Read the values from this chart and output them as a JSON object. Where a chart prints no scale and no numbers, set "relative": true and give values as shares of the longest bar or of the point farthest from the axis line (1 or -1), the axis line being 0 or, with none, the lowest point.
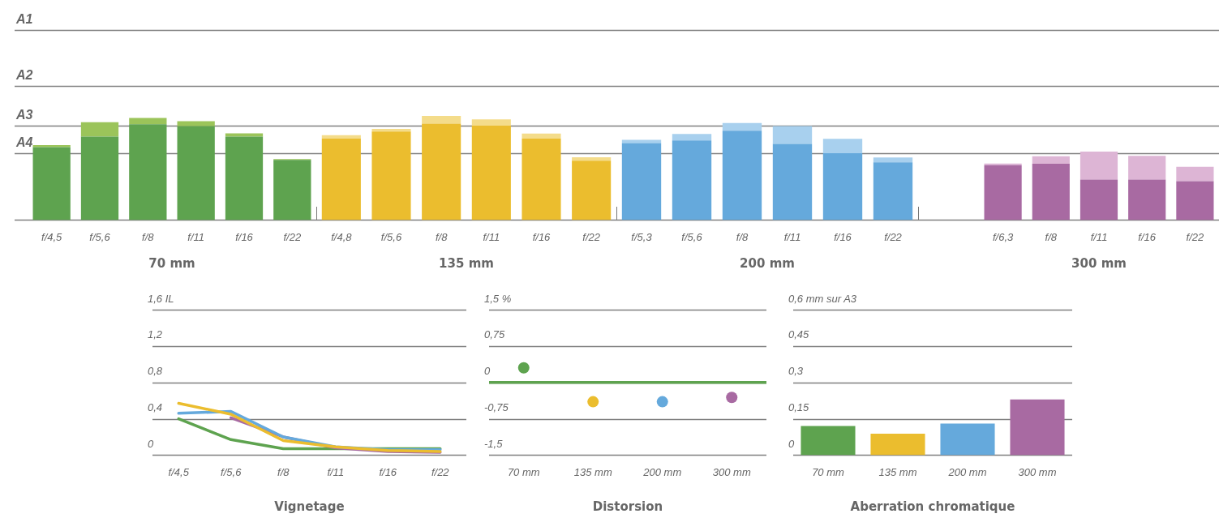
{
  "chart_data": [
    {
      "type": "bar",
      "stacked": true,
      "relative": true,
      "xlabel": "70 mm",
      "categories": [
        "f/4,5",
        "f/5,6",
        "f/8",
        "f/11",
        "f/16",
        "f/22"
      ],
      "series": [
        {
          "color": "#5ea34f",
          "values": [
            0.713,
            0.817,
            0.938,
            0.918,
            0.817,
            0.589
          ]
        },
        {
          "color": "#9bc45a",
          "values": [
            0.02,
            0.141,
            0.062,
            0.049,
            0.031,
            0.007
          ]
        }
      ],
      "ref_lines": [
        {
          "axis": "y",
          "value": 0.656,
          "label": "A4"
        },
        {
          "axis": "y",
          "value": 0.927,
          "label": "A3"
        },
        {
          "axis": "y",
          "value": 1.311,
          "label": "A2"
        },
        {
          "axis": "y",
          "value": 1.857,
          "label": "A1"
        }
      ]
    },
    {
      "type": "bar",
      "stacked": true,
      "relative": true,
      "xlabel": "135 mm",
      "categories": [
        "f/4,8",
        "f/5,6",
        "f/8",
        "f/11",
        "f/16",
        "f/22"
      ],
      "series": [
        {
          "color": "#ebbd2e",
          "values": [
            0.783,
            0.85,
            0.926,
            0.907,
            0.783,
            0.571
          ]
        },
        {
          "color": "#f4dc8a",
          "values": [
            0.033,
            0.026,
            0.074,
            0.061,
            0.048,
            0.033
          ]
        }
      ],
      "ref_lines": [
        {
          "axis": "y",
          "value": 0.644
        },
        {
          "axis": "y",
          "value": 0.911
        },
        {
          "axis": "y",
          "value": 1.289
        },
        {
          "axis": "y",
          "value": 1.824
        }
      ]
    },
    {
      "type": "bar",
      "stacked": true,
      "relative": true,
      "xlabel": "200 mm",
      "categories": [
        "f/5,3",
        "f/5,6",
        "f/8",
        "f/11",
        "f/16",
        "f/22"
      ],
      "series": [
        {
          "color": "#65a9dc",
          "values": [
            0.793,
            0.821,
            0.921,
            0.784,
            0.688,
            0.595
          ]
        },
        {
          "color": "#a8d0ee",
          "values": [
            0.033,
            0.067,
            0.079,
            0.184,
            0.149,
            0.049
          ]
        }
      ],
      "ref_lines": [
        {
          "axis": "y",
          "value": 0.691
        },
        {
          "axis": "y",
          "value": 0.977
        },
        {
          "axis": "y",
          "value": 1.381
        },
        {
          "axis": "y",
          "value": 1.956
        }
      ]
    },
    {
      "type": "bar",
      "stacked": true,
      "relative": true,
      "xlabel": "300 mm",
      "categories": [
        "f/6,3",
        "f/8",
        "f/11",
        "f/16",
        "f/22"
      ],
      "series": [
        {
          "color": "#a86aa2",
          "values": [
            0.802,
            0.822,
            0.591,
            0.591,
            0.568
          ]
        },
        {
          "color": "#ddb5d5",
          "values": [
            0.023,
            0.112,
            0.409,
            0.347,
            0.211
          ]
        }
      ],
      "ref_lines": [
        {
          "axis": "y",
          "value": 0.98
        },
        {
          "axis": "y",
          "value": 1.386
        },
        {
          "axis": "y",
          "value": 1.96
        },
        {
          "axis": "y",
          "value": 2.776
        }
      ]
    },
    {
      "type": "line",
      "title": "Vignetage",
      "categories": [
        "f/4,5",
        "f/5,6",
        "f/8",
        "f/11",
        "f/16",
        "f/22"
      ],
      "ylim": [
        0,
        1.6
      ],
      "yticks": [
        {
          "value": 0,
          "label": "0"
        },
        {
          "value": 0.4,
          "label": "0,4"
        },
        {
          "value": 0.8,
          "label": "0,8"
        },
        {
          "value": 1.2,
          "label": "1,2"
        },
        {
          "value": 1.6,
          "label": "1,6 IL"
        }
      ],
      "grid": "y",
      "series": [
        {
          "color": "#ebbd2e",
          "values": [
            0.57,
            0.45,
            0.16,
            0.09,
            0.05,
            0.04
          ]
        },
        {
          "color": "#65a9dc",
          "values": [
            0.46,
            0.48,
            0.2,
            0.09,
            0.06,
            0.06
          ]
        },
        {
          "color": "#a86aa2",
          "values": [
            null,
            0.41,
            0.2,
            0.08,
            0.04,
            0.03
          ]
        },
        {
          "color": "#5ea34f",
          "values": [
            0.4,
            0.17,
            0.07,
            0.07,
            0.07,
            0.07
          ]
        }
      ]
    },
    {
      "type": "scatter",
      "title": "Distorsion",
      "categories": [
        "70 mm",
        "135 mm",
        "200 mm",
        "300 mm"
      ],
      "values": [
        0.3,
        -0.4,
        -0.4,
        -0.31
      ],
      "colors": [
        "#5ea34f",
        "#ebbd2e",
        "#65a9dc",
        "#a86aa2"
      ],
      "marker": "circle",
      "ylim": [
        -1.5,
        1.5
      ],
      "yticks": [
        {
          "value": -1.5,
          "label": "-1,5"
        },
        {
          "value": -0.75,
          "label": "-0,75"
        },
        {
          "value": 0,
          "label": "0"
        },
        {
          "value": 0.75,
          "label": "0,75"
        },
        {
          "value": 1.5,
          "label": "1,5 %"
        }
      ],
      "grid": "y",
      "ref_lines": [
        {
          "axis": "y",
          "value": 0,
          "color": "#5ea34f",
          "line_style": "solid"
        }
      ]
    },
    {
      "type": "bar",
      "title": "Aberration chromatique",
      "categories": [
        "70 mm",
        "135 mm",
        "200 mm",
        "300 mm"
      ],
      "values": [
        0.12,
        0.088,
        0.13,
        0.23
      ],
      "colors": [
        "#5ea34f",
        "#ebbd2e",
        "#65a9dc",
        "#a86aa2"
      ],
      "ylim": [
        0,
        0.6
      ],
      "yticks": [
        {
          "value": 0,
          "label": "0"
        },
        {
          "value": 0.15,
          "label": "0,15"
        },
        {
          "value": 0.3,
          "label": "0,3"
        },
        {
          "value": 0.45,
          "label": "0,45"
        },
        {
          "value": 0.6,
          "label": "0,6 mm sur A3"
        }
      ],
      "grid": "y"
    }
  ]
}
